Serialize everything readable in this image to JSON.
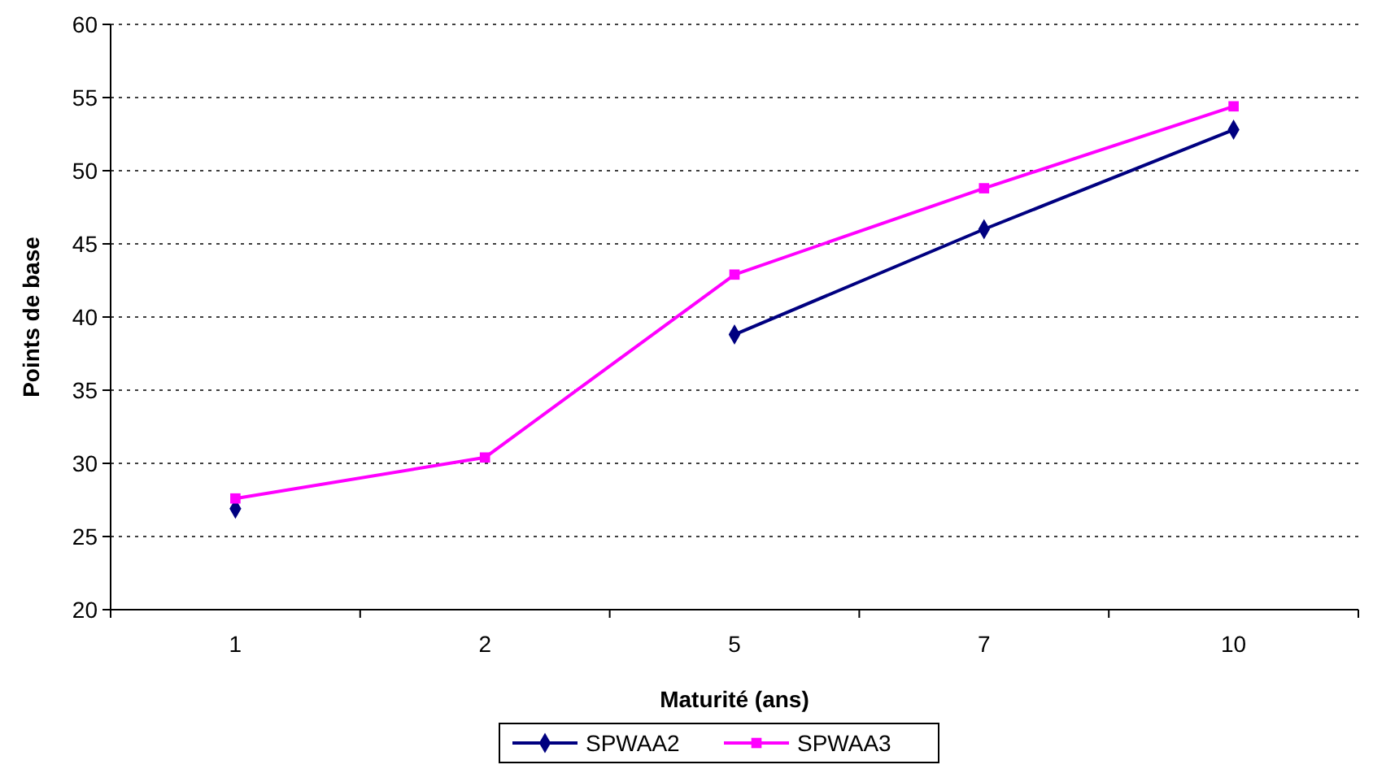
{
  "chart_data": {
    "type": "line",
    "xlabel": "Maturité (ans)",
    "ylabel": "Points de base",
    "categories": [
      "1",
      "2",
      "5",
      "7",
      "10"
    ],
    "ylim": [
      20,
      60
    ],
    "yticks": [
      20,
      25,
      30,
      35,
      40,
      45,
      50,
      55,
      60
    ],
    "grid": "y",
    "legend": "bottom",
    "series": [
      {
        "name": "SPWAA2",
        "color": "#000080",
        "marker": "diamond",
        "values": [
          26.9,
          null,
          38.8,
          46.0,
          52.8
        ]
      },
      {
        "name": "SPWAA3",
        "color": "#ff00ff",
        "marker": "square",
        "values": [
          27.6,
          30.4,
          42.9,
          48.8,
          54.4
        ]
      }
    ]
  }
}
